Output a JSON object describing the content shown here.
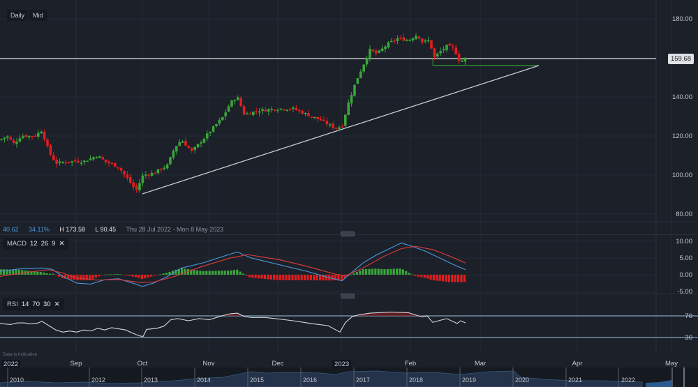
{
  "toolbar": {
    "interval": "Daily",
    "price_type": "Mid"
  },
  "price_pane": {
    "last_price": "159.68",
    "y_ticks": [
      "180.00",
      "140.00",
      "120.00",
      "100.00",
      "80.00"
    ],
    "stats": {
      "change": "40.62",
      "change_pct": "34.11%",
      "high": "H 173.58",
      "low": "L 90.45",
      "range": "Thu 28 Jul 2022 - Mon 8 May 2023"
    }
  },
  "macd": {
    "name": "MACD",
    "p1": "12",
    "p2": "26",
    "p3": "9",
    "close": "✕",
    "y_ticks": [
      "10.00",
      "5.00",
      "0.00",
      "-5.00"
    ]
  },
  "rsi": {
    "name": "RSI",
    "p1": "14",
    "p2": "70",
    "p3": "30",
    "close": "✕",
    "y_ticks": [
      "70",
      "30"
    ]
  },
  "x_axis": {
    "labels": [
      "2022",
      "Sep",
      "Oct",
      "Nov",
      "Dec",
      "2023",
      "Feb",
      "Mar",
      "Apr",
      "May"
    ]
  },
  "disclaimer": "Data is indicative",
  "navigator": {
    "years": [
      "2010",
      "2012",
      "2013",
      "2014",
      "2015",
      "2016",
      "2017",
      "2018",
      "2019",
      "2020",
      "2021",
      "2022"
    ]
  },
  "colors": {
    "up": "#3aa53a",
    "down": "#e01e1e",
    "macd_line": "#4a8fd1",
    "signal_line": "#d23a3a",
    "background": "#1b2029"
  },
  "chart_data": [
    {
      "type": "candlestick",
      "title": "Daily Mid price",
      "x_range": [
        "Thu 28 Jul 2022",
        "Mon 8 May 2023"
      ],
      "ylim": [
        75,
        185
      ],
      "y_ticks": [
        80,
        100,
        120,
        140,
        160,
        180
      ],
      "last_price": 159.68,
      "high": 173.58,
      "low": 90.45,
      "change": 40.62,
      "change_pct": 34.11,
      "approx_closes": {
        "2022-08-01": 118,
        "2022-08-15": 120,
        "2022-08-25": 107,
        "2022-09-10": 110,
        "2022-09-20": 108,
        "2022-09-30": 92,
        "2022-10-10": 100,
        "2022-10-25": 115,
        "2022-11-05": 125,
        "2022-11-15": 140,
        "2022-11-20": 131,
        "2022-12-01": 134,
        "2022-12-20": 125,
        "2022-12-30": 124,
        "2023-01-10": 145,
        "2023-01-20": 162,
        "2023-02-01": 170,
        "2023-02-08": 160,
        "2023-02-15": 166,
        "2023-02-22": 158,
        "2023-02-27": 159.68
      },
      "annotations": [
        {
          "type": "horizontal_line",
          "value": 159.68,
          "color": "#bfc3c8"
        },
        {
          "type": "horizontal_line",
          "value": 156.5,
          "from": "2023-02-08",
          "to": "2023-03-31",
          "color": "#2f8a2f"
        },
        {
          "type": "trendline",
          "from": [
            "2022-09-30",
            90.45
          ],
          "to": [
            "2023-03-31",
            156.5
          ],
          "color": "#c8ccd0"
        }
      ]
    },
    {
      "type": "line",
      "title": "MACD 12 26 9",
      "ylim": [
        -5,
        10
      ],
      "series": [
        {
          "name": "MACD"
        },
        {
          "name": "Signal"
        },
        {
          "name": "Histogram"
        }
      ],
      "approx_values": {
        "peak_macd": 9.5,
        "min_macd": -3.5,
        "latest_macd": 1.5,
        "latest_signal": 3.5
      }
    },
    {
      "type": "line",
      "title": "RSI 14 70 30",
      "ylim": [
        20,
        80
      ],
      "levels": [
        70,
        30
      ],
      "approx_values": {
        "min": 31,
        "max": 75,
        "latest": 48
      }
    }
  ]
}
